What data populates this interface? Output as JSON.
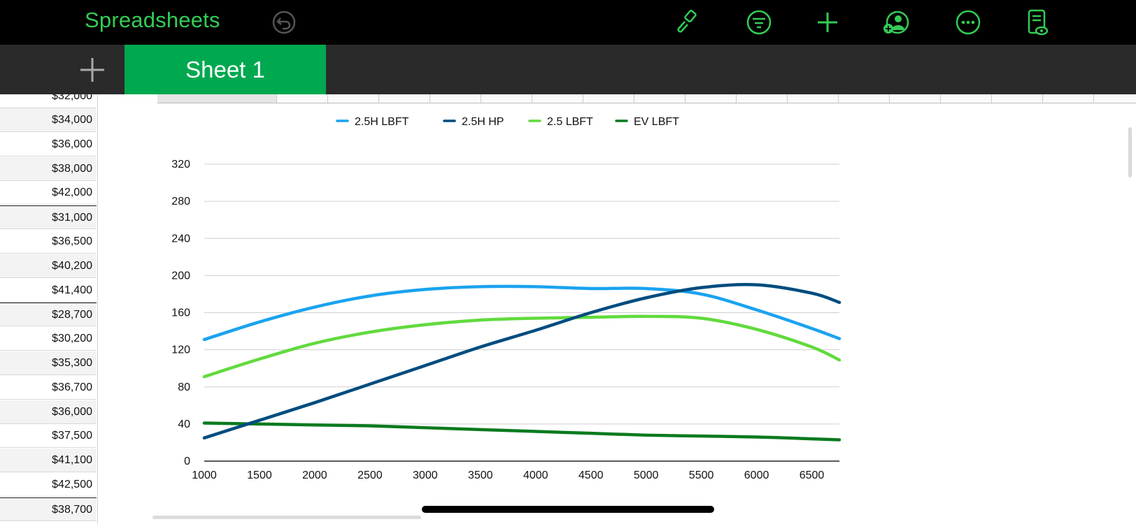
{
  "app": {
    "title": "Spreadsheets"
  },
  "toolbar": {
    "icons": [
      "undo-icon",
      "paintbrush-icon",
      "filter-icon",
      "plus-icon",
      "collaborate-icon",
      "more-icon",
      "reading-view-icon"
    ],
    "accent": "#33cc55"
  },
  "tabs": {
    "active": "Sheet 1",
    "add_icon": "plus-icon"
  },
  "left_column": {
    "partial_top_value": "$32,000",
    "values": [
      "$34,000",
      "$36,000",
      "$38,000",
      "$42,000",
      "$31,000",
      "$36,500",
      "$40,200",
      "$41,400",
      "$28,700",
      "$30,200",
      "$35,300",
      "$36,700",
      "$36,000",
      "$37,500",
      "$41,100",
      "$42,500",
      "$38,700"
    ]
  },
  "chart_data": {
    "type": "line",
    "legend": [
      "2.5H LBFT",
      "2.5H HP",
      "2.5 LBFT",
      "EV LBFT"
    ],
    "legend_position": "top",
    "x_ticks": [
      "1000",
      "1500",
      "2000",
      "2500",
      "3000",
      "3500",
      "4000",
      "4500",
      "5000",
      "5500",
      "6000",
      "6500"
    ],
    "y_ticks": [
      "0",
      "40",
      "80",
      "120",
      "160",
      "200",
      "240",
      "280",
      "320"
    ],
    "xlim": [
      1000,
      6750
    ],
    "ylim": [
      0,
      320
    ],
    "grid": true,
    "series": [
      {
        "name": "2.5H LBFT",
        "color": "#1aa3ef",
        "x": [
          1000,
          1500,
          2000,
          2500,
          3000,
          3500,
          4000,
          4500,
          5000,
          5500,
          6000,
          6500,
          6750
        ],
        "y": [
          131,
          150,
          166,
          178,
          185,
          188,
          188,
          186,
          186,
          180,
          163,
          143,
          132
        ]
      },
      {
        "name": "2.5H HP",
        "color": "#004c7f",
        "x": [
          1000,
          1500,
          2000,
          2500,
          3000,
          3500,
          4000,
          4500,
          5000,
          5500,
          6000,
          6500,
          6750
        ],
        "y": [
          25,
          44,
          63,
          83,
          103,
          123,
          141,
          160,
          176,
          187,
          190,
          181,
          171
        ]
      },
      {
        "name": "2.5 LBFT",
        "color": "#62da3e",
        "x": [
          1000,
          1500,
          2000,
          2500,
          3000,
          3500,
          4000,
          4500,
          5000,
          5500,
          6000,
          6500,
          6750
        ],
        "y": [
          91,
          110,
          127,
          139,
          147,
          152,
          154,
          155,
          156,
          154,
          142,
          123,
          109
        ]
      },
      {
        "name": "EV LBFT",
        "color": "#0a7a1e",
        "x": [
          1000,
          1500,
          2000,
          2500,
          3000,
          3500,
          4000,
          4500,
          5000,
          5500,
          6000,
          6500,
          6750
        ],
        "y": [
          41,
          40,
          39,
          38,
          36,
          34,
          32,
          30,
          28,
          27,
          26,
          24,
          23
        ]
      }
    ]
  }
}
